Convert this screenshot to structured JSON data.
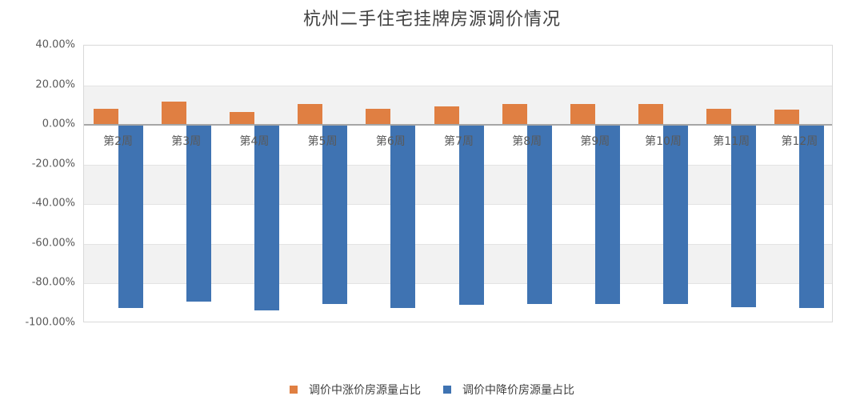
{
  "chart_data": {
    "type": "bar",
    "title": "杭州二手住宅挂牌房源调价情况",
    "xlabel": "",
    "ylabel": "",
    "categories": [
      "第2周",
      "第3周",
      "第4周",
      "第5周",
      "第6周",
      "第7周",
      "第8周",
      "第9周",
      "第10周",
      "第11周",
      "第12周"
    ],
    "series": [
      {
        "name": "调价中涨价房源量占比",
        "color": "#e07f42",
        "values": [
          8.0,
          11.6,
          6.7,
          10.4,
          8.3,
          9.4,
          10.4,
          10.5,
          10.5,
          8.3,
          7.8
        ]
      },
      {
        "name": "调价中降价房源量占比",
        "color": "#3f73b2",
        "values": [
          -92.3,
          -89.1,
          -93.5,
          -90.2,
          -92.3,
          -90.9,
          -90.2,
          -90.2,
          -90.2,
          -91.9,
          -92.3
        ]
      }
    ],
    "ylim": [
      -100,
      40
    ],
    "yticks": [
      "40.00%",
      "20.00%",
      "0.00%",
      "-20.00%",
      "-40.00%",
      "-60.00%",
      "-80.00%",
      "-100.00%"
    ],
    "y_unit": "%",
    "grid": true,
    "legend_position": "bottom"
  }
}
